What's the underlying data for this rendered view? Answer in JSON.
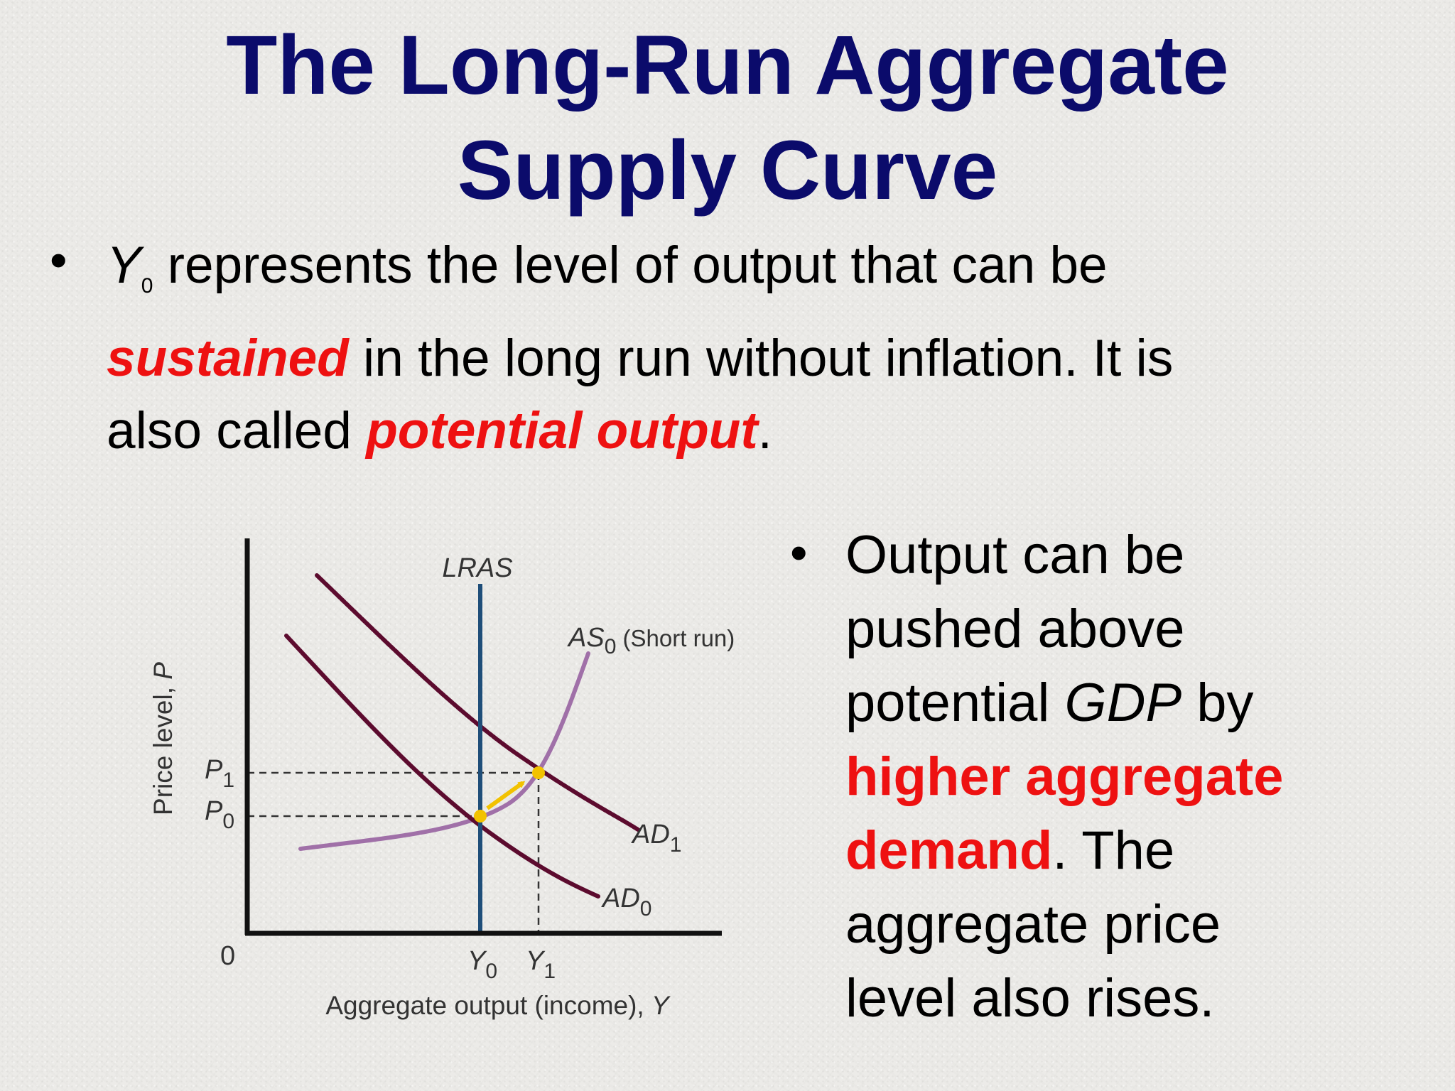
{
  "title": {
    "line1": "The Long-Run Aggregate",
    "line2": "Supply Curve"
  },
  "bullet1": {
    "symbol": "•",
    "y_var": "Y",
    "y_sub": "0",
    "text_a": " represents the level of output that can be",
    "emph1": "sustained",
    "text_b": " in the long run without inflation.  It is",
    "text_c": "also called ",
    "emph2": "potential output",
    "text_d": "."
  },
  "bullet2": {
    "symbol": "•",
    "l1": "Output can be",
    "l2": "pushed above",
    "l3_a": "potential ",
    "l3_italic": "GDP",
    "l3_b": " by",
    "l4": "higher aggregate",
    "l5_red": "demand",
    "l5_b": ".  The",
    "l6": "aggregate price",
    "l7": "level also rises."
  },
  "diagram": {
    "origin": "0",
    "y_axis_label": "Price level, ",
    "y_axis_var": "P",
    "x_axis_label": "Aggregate output (income), ",
    "x_axis_var": "Y",
    "lras_label": "LRAS",
    "as_label": "AS",
    "as_sub": "0",
    "as_note": " (Short run)",
    "ad1_label": "AD",
    "ad1_sub": "1",
    "ad0_label": "AD",
    "ad0_sub": "0",
    "p1_label": "P",
    "p1_sub": "1",
    "p0_label": "P",
    "p0_sub": "0",
    "y0_label": "Y",
    "y0_sub": "0",
    "y1_label": "Y",
    "y1_sub": "1",
    "colors": {
      "axis": "#111111",
      "lras": "#1f4e79",
      "ad": "#5c0b2e",
      "as": "#a070a8",
      "point": "#f2c200",
      "arrow": "#f2c200",
      "dash": "#333333"
    }
  }
}
